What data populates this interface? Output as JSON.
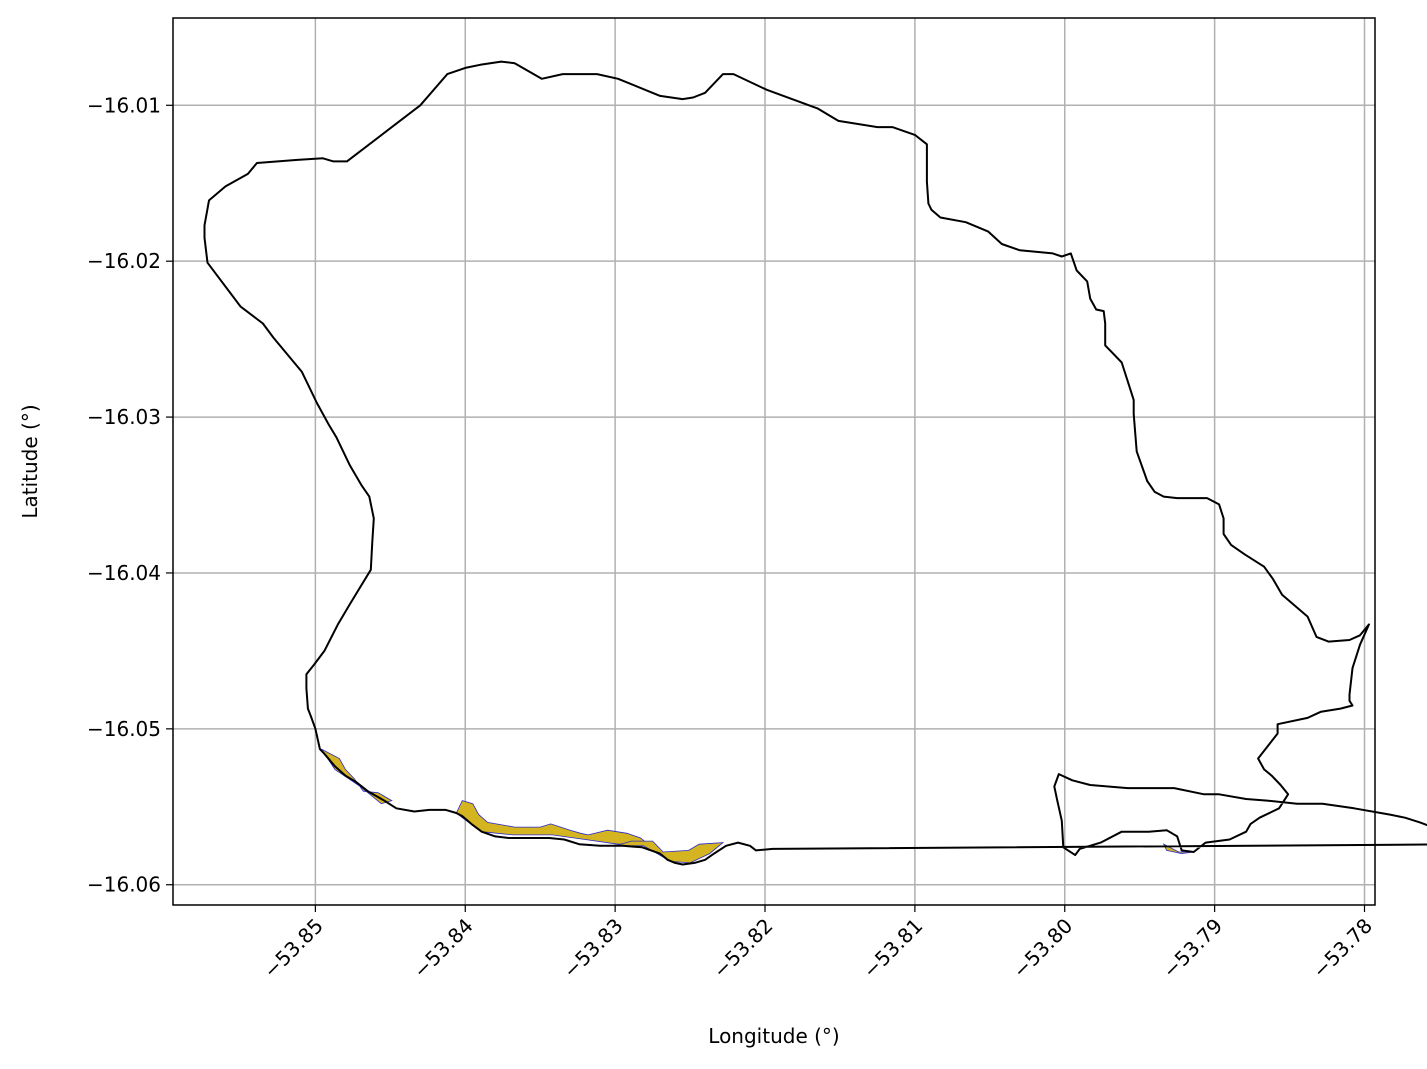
{
  "chart_data": {
    "type": "map",
    "title": "",
    "xlabel": "Longitude (°)",
    "ylabel": "Latitude (°)",
    "xlim": [
      -53.8595,
      -53.7793
    ],
    "ylim": [
      -16.0613,
      -16.0044
    ],
    "grid": true,
    "x_ticks": [
      -53.85,
      -53.84,
      -53.83,
      -53.82,
      -53.81,
      -53.8,
      -53.79,
      -53.78
    ],
    "x_tick_labels": [
      "−53.85",
      "−53.84",
      "−53.83",
      "−53.82",
      "−53.81",
      "−53.80",
      "−53.79",
      "−53.78"
    ],
    "y_ticks": [
      -16.01,
      -16.02,
      -16.03,
      -16.04,
      -16.05,
      -16.06
    ],
    "y_tick_labels": [
      "−16.01",
      "−16.02",
      "−16.03",
      "−16.04",
      "−16.05",
      "−16.06"
    ],
    "colors": {
      "boundary": "#000000",
      "fill": "#d4b420",
      "fill_edge": "#2a2acc",
      "grid": "#b0b0b0"
    },
    "boundary": [
      [
        -53.8501,
        -16.0459
      ],
      [
        -53.8494,
        -16.045
      ],
      [
        -53.8485,
        -16.0433
      ],
      [
        -53.8477,
        -16.042
      ],
      [
        -53.847,
        -16.0409
      ],
      [
        -53.8463,
        -16.0398
      ],
      [
        -53.8462,
        -16.038
      ],
      [
        -53.8461,
        -16.0365
      ],
      [
        -53.8464,
        -16.0351
      ],
      [
        -53.8469,
        -16.0344
      ],
      [
        -53.8477,
        -16.0331
      ],
      [
        -53.8486,
        -16.0313
      ],
      [
        -53.8491,
        -16.0305
      ],
      [
        -53.8499,
        -16.0291
      ],
      [
        -53.8509,
        -16.0271
      ],
      [
        -53.8528,
        -16.0249
      ],
      [
        -53.8535,
        -16.024
      ],
      [
        -53.855,
        -16.0229
      ],
      [
        -53.8572,
        -16.0201
      ],
      [
        -53.8574,
        -16.0185
      ],
      [
        -53.8574,
        -16.0177
      ],
      [
        -53.8571,
        -16.0161
      ],
      [
        -53.856,
        -16.0152
      ],
      [
        -53.8545,
        -16.0144
      ],
      [
        -53.8539,
        -16.0137
      ],
      [
        -53.8512,
        -16.0135
      ],
      [
        -53.8495,
        -16.0134
      ],
      [
        -53.8488,
        -16.0136
      ],
      [
        -53.8479,
        -16.0136
      ],
      [
        -53.843,
        -16.01
      ],
      [
        -53.8412,
        -16.008
      ],
      [
        -53.84,
        -16.0076
      ],
      [
        -53.839,
        -16.0074
      ],
      [
        -53.8376,
        -16.0072
      ],
      [
        -53.8367,
        -16.0073
      ],
      [
        -53.8349,
        -16.0083
      ],
      [
        -53.8335,
        -16.008
      ],
      [
        -53.8312,
        -16.008
      ],
      [
        -53.8298,
        -16.0083
      ],
      [
        -53.827,
        -16.0094
      ],
      [
        -53.8255,
        -16.0096
      ],
      [
        -53.8248,
        -16.0095
      ],
      [
        -53.824,
        -16.0092
      ],
      [
        -53.8228,
        -16.008
      ],
      [
        -53.8221,
        -16.008
      ],
      [
        -53.8199,
        -16.009
      ],
      [
        -53.8165,
        -16.0102
      ],
      [
        -53.8151,
        -16.011
      ],
      [
        -53.8125,
        -16.0114
      ],
      [
        -53.8115,
        -16.0114
      ],
      [
        -53.81,
        -16.0119
      ],
      [
        -53.8092,
        -16.0125
      ],
      [
        -53.8092,
        -16.0137
      ],
      [
        -53.8092,
        -16.0149
      ],
      [
        -53.8091,
        -16.0163
      ],
      [
        -53.8089,
        -16.0167
      ],
      [
        -53.8083,
        -16.0172
      ],
      [
        -53.8066,
        -16.0175
      ],
      [
        -53.8051,
        -16.0181
      ],
      [
        -53.8042,
        -16.0189
      ],
      [
        -53.803,
        -16.0193
      ],
      [
        -53.8008,
        -16.0195
      ],
      [
        -53.8002,
        -16.0197
      ],
      [
        -53.7996,
        -16.0195
      ],
      [
        -53.7992,
        -16.0206
      ],
      [
        -53.7985,
        -16.0213
      ],
      [
        -53.7983,
        -16.0224
      ],
      [
        -53.7979,
        -16.0231
      ],
      [
        -53.7974,
        -16.0232
      ],
      [
        -53.7973,
        -16.024
      ],
      [
        -53.7973,
        -16.0254
      ],
      [
        -53.7969,
        -16.0258
      ],
      [
        -53.7962,
        -16.0265
      ],
      [
        -53.7954,
        -16.0289
      ],
      [
        -53.7954,
        -16.0298
      ],
      [
        -53.7952,
        -16.0322
      ],
      [
        -53.7945,
        -16.0341
      ],
      [
        -53.794,
        -16.0348
      ],
      [
        -53.7934,
        -16.0351
      ],
      [
        -53.7925,
        -16.0352
      ],
      [
        -53.7905,
        -16.0352
      ],
      [
        -53.7897,
        -16.0356
      ],
      [
        -53.7894,
        -16.0365
      ],
      [
        -53.7894,
        -16.0375
      ],
      [
        -53.7889,
        -16.0382
      ],
      [
        -53.788,
        -16.0388
      ],
      [
        -53.7867,
        -16.0396
      ],
      [
        -53.7861,
        -16.0404
      ],
      [
        -53.7855,
        -16.0414
      ],
      [
        -53.7838,
        -16.0428
      ],
      [
        -53.7832,
        -16.0441
      ],
      [
        -53.7824,
        -16.0444
      ],
      [
        -53.781,
        -16.0443
      ],
      [
        -53.7803,
        -16.044
      ],
      [
        -53.7797,
        -16.0433
      ],
      [
        -53.7803,
        -16.0446
      ],
      [
        -53.7808,
        -16.0461
      ],
      [
        -53.781,
        -16.0478
      ],
      [
        -53.781,
        -16.0482
      ],
      [
        -53.7808,
        -16.0485
      ],
      [
        -53.7816,
        -16.0487
      ],
      [
        -53.7829,
        -16.0489
      ],
      [
        -53.7838,
        -16.0493
      ],
      [
        -53.7858,
        -16.0497
      ],
      [
        -53.7858,
        -16.0503
      ],
      [
        -53.7871,
        -16.0519
      ],
      [
        -53.7867,
        -16.0526
      ],
      [
        -53.7862,
        -16.053
      ],
      [
        -53.7856,
        -16.0536
      ],
      [
        -53.7851,
        -16.0542
      ],
      [
        -53.7857,
        -16.0551
      ],
      [
        -53.787,
        -16.0557
      ],
      [
        -53.7876,
        -16.0561
      ],
      [
        -53.7879,
        -16.0566
      ],
      [
        -53.789,
        -16.0571
      ],
      [
        -53.7906,
        -16.0573
      ],
      [
        -53.7914,
        -16.0579
      ],
      [
        -53.7922,
        -16.0578
      ],
      [
        -53.7925,
        -16.0569
      ],
      [
        -53.7932,
        -16.0565
      ],
      [
        -53.7944,
        -16.0566
      ],
      [
        -53.7962,
        -16.0566
      ],
      [
        -53.7976,
        -16.0573
      ],
      [
        -53.799,
        -16.0577
      ],
      [
        -53.7993,
        -16.0581
      ],
      [
        -53.8001,
        -16.0576
      ],
      [
        -53.8002,
        -16.0559
      ],
      [
        -53.8005,
        -16.0546
      ],
      [
        -53.8007,
        -16.0537
      ],
      [
        -53.8004,
        -16.0529
      ],
      [
        -53.7995,
        -16.0533
      ],
      [
        -53.7983,
        -16.0536
      ],
      [
        -53.7958,
        -16.0538
      ],
      [
        -53.7927,
        -16.0538
      ],
      [
        -53.7907,
        -16.0542
      ],
      [
        -53.7897,
        -16.0542
      ],
      [
        -53.7879,
        -16.0545
      ],
      [
        -53.7865,
        -16.0546
      ],
      [
        -53.7845,
        -16.0548
      ],
      [
        -53.7828,
        -16.0548
      ],
      [
        -53.7807,
        -16.0551
      ],
      [
        -53.7783,
        -16.0555
      ],
      [
        -53.7773,
        -16.0557
      ],
      [
        -53.7763,
        -16.056
      ],
      [
        -53.7749,
        -16.0565
      ],
      [
        -53.773,
        -16.057
      ],
      [
        -53.7722,
        -16.0574
      ],
      [
        -53.8195,
        -16.0577
      ],
      [
        -53.8206,
        -16.0578
      ],
      [
        -53.821,
        -16.0575
      ],
      [
        -53.8218,
        -16.0573
      ],
      [
        -53.8226,
        -16.0575
      ],
      [
        -53.8234,
        -16.058
      ],
      [
        -53.824,
        -16.0584
      ],
      [
        -53.8247,
        -16.0586
      ],
      [
        -53.8255,
        -16.0587
      ],
      [
        -53.826,
        -16.0586
      ],
      [
        -53.8265,
        -16.0584
      ],
      [
        -53.827,
        -16.058
      ],
      [
        -53.8282,
        -16.0576
      ],
      [
        -53.8295,
        -16.0575
      ],
      [
        -53.831,
        -16.0575
      ],
      [
        -53.8324,
        -16.0574
      ],
      [
        -53.8334,
        -16.0571
      ],
      [
        -53.8344,
        -16.057
      ],
      [
        -53.8356,
        -16.057
      ],
      [
        -53.8371,
        -16.057
      ],
      [
        -53.838,
        -16.0569
      ],
      [
        -53.8389,
        -16.0566
      ],
      [
        -53.8396,
        -16.0561
      ],
      [
        -53.8402,
        -16.0556
      ],
      [
        -53.8406,
        -16.0554
      ],
      [
        -53.8413,
        -16.0552
      ],
      [
        -53.8424,
        -16.0552
      ],
      [
        -53.8434,
        -16.0553
      ],
      [
        -53.8446,
        -16.0551
      ],
      [
        -53.8454,
        -16.0546
      ],
      [
        -53.8465,
        -16.054
      ],
      [
        -53.8473,
        -16.0534
      ],
      [
        -53.848,
        -16.053
      ],
      [
        -53.8487,
        -16.0524
      ],
      [
        -53.8494,
        -16.0516
      ],
      [
        -53.8497,
        -16.0513
      ],
      [
        -53.85,
        -16.05
      ],
      [
        -53.8503,
        -16.0492
      ],
      [
        -53.8505,
        -16.0487
      ],
      [
        -53.8506,
        -16.0474
      ],
      [
        -53.8506,
        -16.0465
      ],
      [
        -53.8501,
        -16.0459
      ]
    ],
    "filled_regions": [
      [
        [
          -53.8496,
          -16.0513
        ],
        [
          -53.8484,
          -16.0519
        ],
        [
          -53.848,
          -16.0526
        ],
        [
          -53.8474,
          -16.0532
        ],
        [
          -53.8468,
          -16.054
        ],
        [
          -53.8458,
          -16.0541
        ],
        [
          -53.8449,
          -16.0546
        ],
        [
          -53.8456,
          -16.0548
        ],
        [
          -53.847,
          -16.0537
        ],
        [
          -53.8487,
          -16.0526
        ],
        [
          -53.8496,
          -16.0513
        ]
      ],
      [
        [
          -53.8406,
          -16.0554
        ],
        [
          -53.8402,
          -16.0546
        ],
        [
          -53.8395,
          -16.0548
        ],
        [
          -53.8391,
          -16.0555
        ],
        [
          -53.8385,
          -16.056
        ],
        [
          -53.8367,
          -16.0563
        ],
        [
          -53.835,
          -16.0563
        ],
        [
          -53.8343,
          -16.0561
        ],
        [
          -53.833,
          -16.0565
        ],
        [
          -53.8323,
          -16.0567
        ],
        [
          -53.8318,
          -16.0568
        ],
        [
          -53.8305,
          -16.0565
        ],
        [
          -53.8292,
          -16.0567
        ],
        [
          -53.8283,
          -16.057
        ],
        [
          -53.8278,
          -16.0574
        ],
        [
          -53.8298,
          -16.0574
        ],
        [
          -53.832,
          -16.0571
        ],
        [
          -53.8342,
          -16.0568
        ],
        [
          -53.8368,
          -16.0568
        ],
        [
          -53.8389,
          -16.0566
        ],
        [
          -53.8402,
          -16.0557
        ],
        [
          -53.8406,
          -16.0554
        ]
      ],
      [
        [
          -53.83,
          -16.0575
        ],
        [
          -53.8289,
          -16.0572
        ],
        [
          -53.8275,
          -16.0572
        ],
        [
          -53.8268,
          -16.0579
        ],
        [
          -53.8251,
          -16.0578
        ],
        [
          -53.8244,
          -16.0574
        ],
        [
          -53.8228,
          -16.0573
        ],
        [
          -53.8237,
          -16.058
        ],
        [
          -53.825,
          -16.0586
        ],
        [
          -53.8263,
          -16.0585
        ],
        [
          -53.8281,
          -16.0575
        ],
        [
          -53.83,
          -16.0575
        ]
      ],
      [
        [
          -53.7934,
          -16.0574
        ],
        [
          -53.7932,
          -16.0578
        ],
        [
          -53.7922,
          -16.058
        ],
        [
          -53.7914,
          -16.0579
        ],
        [
          -53.7924,
          -16.0579
        ],
        [
          -53.7934,
          -16.0574
        ]
      ]
    ]
  }
}
